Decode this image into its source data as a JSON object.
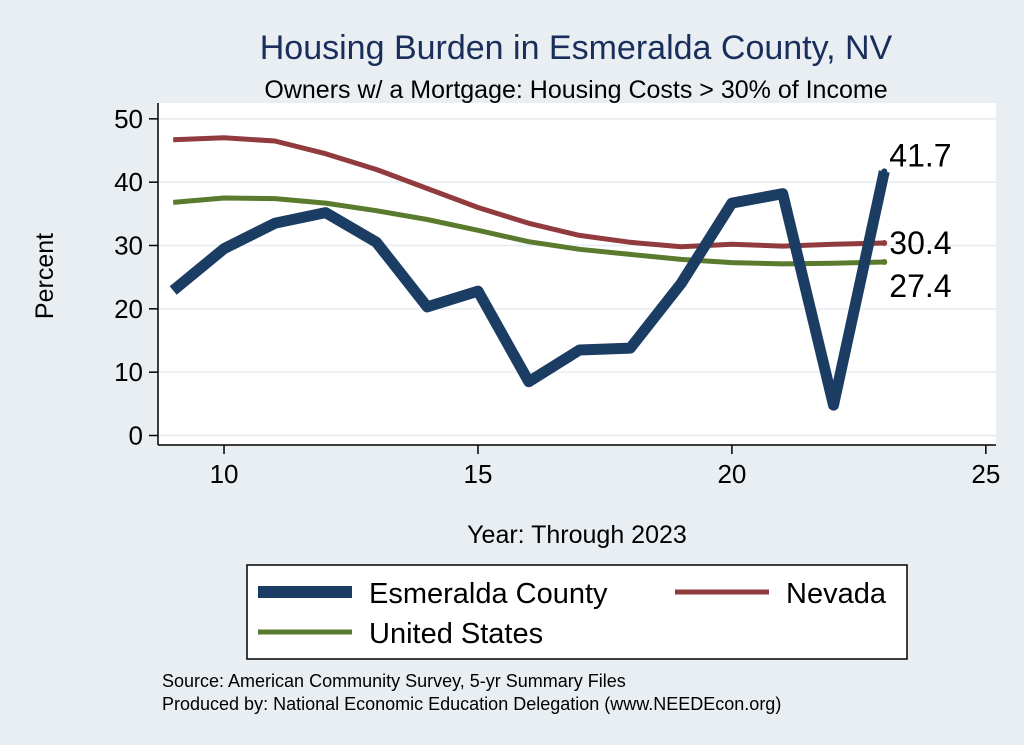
{
  "chart_data": {
    "type": "line",
    "title": "Housing Burden in Esmeralda County, NV",
    "subtitle": "Owners w/ a Mortgage: Housing Costs > 30% of Income",
    "xlabel": "Year: Through 2023",
    "ylabel": "Percent",
    "xlim": [
      8.7,
      25.2
    ],
    "ylim": [
      -1.5,
      52.5
    ],
    "x_ticks": [
      10,
      15,
      20,
      25
    ],
    "y_ticks": [
      0,
      10,
      20,
      30,
      40,
      50
    ],
    "grid": true,
    "legend_position": "bottom",
    "x": [
      9,
      10,
      11,
      12,
      13,
      14,
      15,
      16,
      17,
      18,
      19,
      20,
      21,
      22,
      23
    ],
    "series": [
      {
        "name": "Esmeralda County",
        "color": "#1b3d63",
        "values": [
          22.9,
          29.5,
          33.5,
          35.2,
          30.5,
          20.3,
          22.8,
          8.5,
          13.5,
          13.8,
          24.0,
          36.7,
          38.2,
          4.8,
          41.7
        ],
        "end_label": "41.7"
      },
      {
        "name": "Nevada",
        "color": "#923b3e",
        "values": [
          46.7,
          47.0,
          46.5,
          44.5,
          42.0,
          39.0,
          36.0,
          33.5,
          31.6,
          30.5,
          29.8,
          30.2,
          29.9,
          30.2,
          30.4
        ],
        "end_label": "30.4"
      },
      {
        "name": "United States",
        "color": "#5a7a2e",
        "values": [
          36.8,
          37.5,
          37.4,
          36.7,
          35.5,
          34.1,
          32.4,
          30.6,
          29.4,
          28.6,
          27.8,
          27.3,
          27.1,
          27.2,
          27.4
        ],
        "end_label": "27.4"
      }
    ],
    "notes": [
      "Source: American Community Survey, 5-yr Summary Files",
      "Produced by: National Economic Education Delegation (www.NEEDEcon.org)"
    ]
  }
}
